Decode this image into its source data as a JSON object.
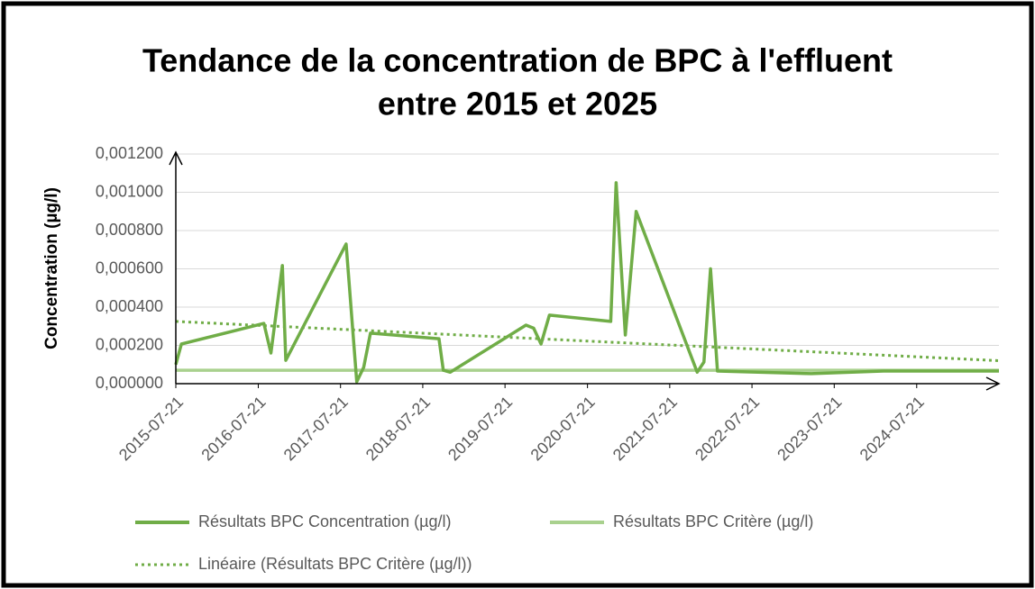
{
  "chart_data": {
    "type": "line",
    "title": [
      "Tendance de la concentration de BPC à l'effluent",
      "entre 2015 et 2025"
    ],
    "y_label": "Concentration (µg/l)",
    "xlim": [
      "2015-07-21",
      "2025-07-21"
    ],
    "xticks": [
      "2015-07-21",
      "2016-07-21",
      "2017-07-21",
      "2018-07-21",
      "2019-07-21",
      "2020-07-21",
      "2021-07-21",
      "2022-07-21",
      "2023-07-21",
      "2024-07-21"
    ],
    "ylim": [
      0,
      0.0012
    ],
    "yticks": [
      {
        "value": 0,
        "label": "0,000000"
      },
      {
        "value": 0.0002,
        "label": "0,000200"
      },
      {
        "value": 0.0004,
        "label": "0,000400"
      },
      {
        "value": 0.0006,
        "label": "0,000600"
      },
      {
        "value": 0.0008,
        "label": "0,000800"
      },
      {
        "value": 0.001,
        "label": "0,001000"
      },
      {
        "value": 0.0012,
        "label": "0,001200"
      }
    ],
    "grid": true,
    "legend": "bottom",
    "series": [
      {
        "name": "Résultats BPC Concentration (µg/l)",
        "color": "#70ad47",
        "style": "solid",
        "x": [
          "2015-07-21",
          "2015-08-15",
          "2016-08-15",
          "2016-09-15",
          "2016-11-05",
          "2016-11-20",
          "2017-08-15",
          "2017-10-01",
          "2017-11-01",
          "2017-12-01",
          "2018-10-01",
          "2018-10-20",
          "2018-11-20",
          "2019-10-22",
          "2019-11-25",
          "2019-12-28",
          "2020-02-03",
          "2020-11-01",
          "2020-11-25",
          "2021-01-05",
          "2021-02-22",
          "2021-11-20",
          "2021-12-20",
          "2022-01-18",
          "2022-02-18",
          "2023-04-10",
          "2024-02-24",
          "2025-07-21"
        ],
        "values": [
          0.0001,
          0.000207,
          0.000315,
          0.00016,
          0.000617,
          0.000122,
          0.00073,
          1e-05,
          8.5e-05,
          0.000264,
          0.000235,
          7e-05,
          6e-05,
          0.000306,
          0.00029,
          0.000207,
          0.000358,
          0.000325,
          0.00105,
          0.000254,
          0.0009,
          6e-05,
          0.000113,
          0.0006,
          6.6e-05,
          5.2e-05,
          6.6e-05,
          6.6e-05
        ]
      },
      {
        "name": "Résultats BPC Critère (µg/l)",
        "color": "#a9d18e",
        "style": "solid",
        "x": [
          "2015-07-21",
          "2025-07-21"
        ],
        "values": [
          7e-05,
          7e-05
        ]
      },
      {
        "name": "Linéaire (Résultats BPC Critère (µg/l))",
        "color": "#70ad47",
        "style": "dotted",
        "x": [
          "2015-07-21",
          "2025-07-21"
        ],
        "values": [
          0.000325,
          0.00012
        ]
      }
    ]
  }
}
